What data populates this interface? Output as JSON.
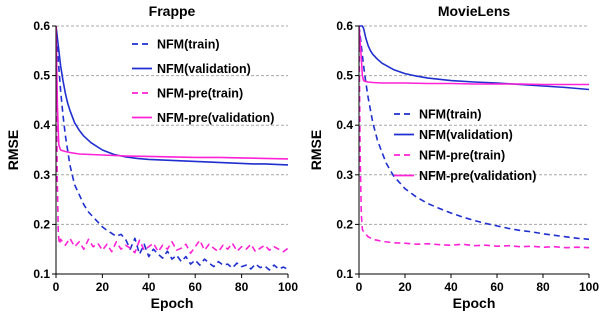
{
  "colors": {
    "nfm": "#1f2fd0",
    "nfm_pre": "#ff22d6",
    "grid": "#a8a8a8"
  },
  "chart_data": [
    {
      "type": "line",
      "title": "Frappe",
      "xlabel": "Epoch",
      "ylabel": "RMSE",
      "xlim": [
        0,
        100
      ],
      "ylim": [
        0.1,
        0.6
      ],
      "xticks": [
        "0",
        "20",
        "40",
        "60",
        "80",
        "100"
      ],
      "yticks": [
        "0.1",
        "0.2",
        "0.3",
        "0.4",
        "0.5",
        "0.6"
      ],
      "grid": "horizontal dashed",
      "legend": "top-right",
      "series": [
        {
          "name": "NFM(train)",
          "style": "dashed",
          "color": "nfm",
          "x": [
            0,
            1,
            2,
            3,
            4,
            5,
            6,
            7,
            8,
            10,
            12,
            14,
            16,
            18,
            20,
            22,
            24,
            26,
            28,
            30,
            32,
            34,
            36,
            38,
            40,
            42,
            44,
            46,
            48,
            50,
            52,
            54,
            56,
            58,
            60,
            62,
            64,
            66,
            68,
            70,
            72,
            74,
            76,
            78,
            80,
            82,
            84,
            86,
            88,
            90,
            92,
            94,
            96,
            98,
            100
          ],
          "y": [
            0.6,
            0.53,
            0.47,
            0.42,
            0.38,
            0.35,
            0.32,
            0.3,
            0.28,
            0.26,
            0.24,
            0.225,
            0.215,
            0.205,
            0.195,
            0.188,
            0.182,
            0.176,
            0.18,
            0.17,
            0.15,
            0.172,
            0.14,
            0.16,
            0.135,
            0.15,
            0.14,
            0.132,
            0.146,
            0.13,
            0.138,
            0.125,
            0.135,
            0.12,
            0.128,
            0.118,
            0.13,
            0.122,
            0.115,
            0.125,
            0.118,
            0.12,
            0.112,
            0.122,
            0.115,
            0.118,
            0.11,
            0.12,
            0.113,
            0.116,
            0.108,
            0.118,
            0.11,
            0.114,
            0.109
          ]
        },
        {
          "name": "NFM(validation)",
          "style": "solid",
          "color": "nfm",
          "x": [
            0,
            1,
            2,
            3,
            4,
            5,
            6,
            8,
            10,
            12,
            15,
            20,
            25,
            30,
            35,
            40,
            45,
            50,
            55,
            60,
            65,
            70,
            75,
            80,
            85,
            90,
            95,
            100
          ],
          "y": [
            0.6,
            0.56,
            0.52,
            0.49,
            0.465,
            0.445,
            0.43,
            0.405,
            0.39,
            0.378,
            0.365,
            0.35,
            0.341,
            0.336,
            0.333,
            0.331,
            0.33,
            0.329,
            0.328,
            0.327,
            0.326,
            0.325,
            0.324,
            0.323,
            0.322,
            0.322,
            0.321,
            0.32
          ]
        },
        {
          "name": "NFM-pre(train)",
          "style": "dashed",
          "color": "nfm_pre",
          "x": [
            0,
            0.5,
            1,
            1.5,
            2,
            4,
            6,
            8,
            10,
            12,
            14,
            16,
            18,
            20,
            22,
            24,
            26,
            28,
            30,
            32,
            34,
            36,
            38,
            40,
            42,
            44,
            46,
            48,
            50,
            52,
            54,
            56,
            58,
            60,
            62,
            64,
            66,
            68,
            70,
            72,
            74,
            76,
            78,
            80,
            82,
            84,
            86,
            88,
            90,
            92,
            94,
            96,
            98,
            100
          ],
          "y": [
            0.6,
            0.3,
            0.18,
            0.16,
            0.17,
            0.158,
            0.172,
            0.155,
            0.165,
            0.15,
            0.17,
            0.155,
            0.162,
            0.148,
            0.16,
            0.145,
            0.165,
            0.15,
            0.158,
            0.152,
            0.143,
            0.168,
            0.148,
            0.155,
            0.162,
            0.145,
            0.158,
            0.15,
            0.165,
            0.148,
            0.152,
            0.16,
            0.142,
            0.155,
            0.168,
            0.148,
            0.16,
            0.152,
            0.145,
            0.158,
            0.15,
            0.162,
            0.146,
            0.155,
            0.15,
            0.16,
            0.145,
            0.152,
            0.158,
            0.148,
            0.155,
            0.15,
            0.145,
            0.152
          ]
        },
        {
          "name": "NFM-pre(validation)",
          "style": "solid",
          "color": "nfm_pre",
          "x": [
            0,
            0.6,
            1.2,
            2,
            4,
            6,
            10,
            15,
            20,
            30,
            40,
            50,
            60,
            70,
            80,
            90,
            100
          ],
          "y": [
            0.6,
            0.44,
            0.36,
            0.35,
            0.347,
            0.345,
            0.342,
            0.341,
            0.34,
            0.338,
            0.337,
            0.336,
            0.335,
            0.335,
            0.334,
            0.333,
            0.332
          ]
        }
      ]
    },
    {
      "type": "line",
      "title": "MovieLens",
      "xlabel": "Epoch",
      "ylabel": "RMSE",
      "xlim": [
        0,
        100
      ],
      "ylim": [
        0.1,
        0.6
      ],
      "xticks": [
        "0",
        "20",
        "40",
        "60",
        "80",
        "100"
      ],
      "yticks": [
        "0.1",
        "0.2",
        "0.3",
        "0.4",
        "0.5",
        "0.6"
      ],
      "grid": "horizontal dashed",
      "legend": "right",
      "series": [
        {
          "name": "NFM(train)",
          "style": "dashed",
          "color": "nfm",
          "x": [
            0,
            1,
            2,
            3,
            4,
            5,
            6,
            8,
            10,
            12,
            15,
            20,
            25,
            30,
            35,
            40,
            45,
            50,
            55,
            60,
            65,
            70,
            75,
            80,
            85,
            90,
            95,
            100
          ],
          "y": [
            0.6,
            0.56,
            0.52,
            0.485,
            0.455,
            0.43,
            0.405,
            0.37,
            0.345,
            0.322,
            0.298,
            0.272,
            0.255,
            0.242,
            0.232,
            0.223,
            0.215,
            0.208,
            0.202,
            0.197,
            0.192,
            0.188,
            0.185,
            0.181,
            0.178,
            0.175,
            0.172,
            0.17
          ]
        },
        {
          "name": "NFM(validation)",
          "style": "solid",
          "color": "nfm",
          "x": [
            0,
            1,
            1.5,
            2,
            3,
            4,
            5,
            6,
            8,
            10,
            15,
            20,
            25,
            30,
            40,
            50,
            60,
            70,
            80,
            90,
            100
          ],
          "y": [
            0.6,
            0.6,
            0.6,
            0.595,
            0.575,
            0.56,
            0.55,
            0.543,
            0.533,
            0.525,
            0.512,
            0.504,
            0.499,
            0.495,
            0.49,
            0.487,
            0.485,
            0.482,
            0.479,
            0.476,
            0.472
          ]
        },
        {
          "name": "NFM-pre(train)",
          "style": "dashed",
          "color": "nfm_pre",
          "x": [
            0,
            0.5,
            1,
            1.5,
            2,
            3,
            4,
            6,
            8,
            10,
            15,
            20,
            25,
            30,
            35,
            40,
            45,
            50,
            55,
            60,
            65,
            70,
            75,
            80,
            85,
            90,
            95,
            100
          ],
          "y": [
            0.6,
            0.35,
            0.22,
            0.19,
            0.185,
            0.18,
            0.175,
            0.17,
            0.168,
            0.166,
            0.163,
            0.162,
            0.16,
            0.161,
            0.159,
            0.158,
            0.16,
            0.157,
            0.158,
            0.156,
            0.157,
            0.155,
            0.156,
            0.154,
            0.155,
            0.153,
            0.154,
            0.153
          ]
        },
        {
          "name": "NFM-pre(validation)",
          "style": "solid",
          "color": "nfm_pre",
          "x": [
            0,
            0.8,
            1.5,
            2,
            3,
            4,
            6,
            10,
            20,
            30,
            40,
            50,
            60,
            70,
            80,
            90,
            100
          ],
          "y": [
            0.6,
            0.55,
            0.5,
            0.49,
            0.488,
            0.487,
            0.486,
            0.485,
            0.485,
            0.484,
            0.484,
            0.483,
            0.483,
            0.483,
            0.482,
            0.482,
            0.482
          ]
        }
      ]
    }
  ]
}
